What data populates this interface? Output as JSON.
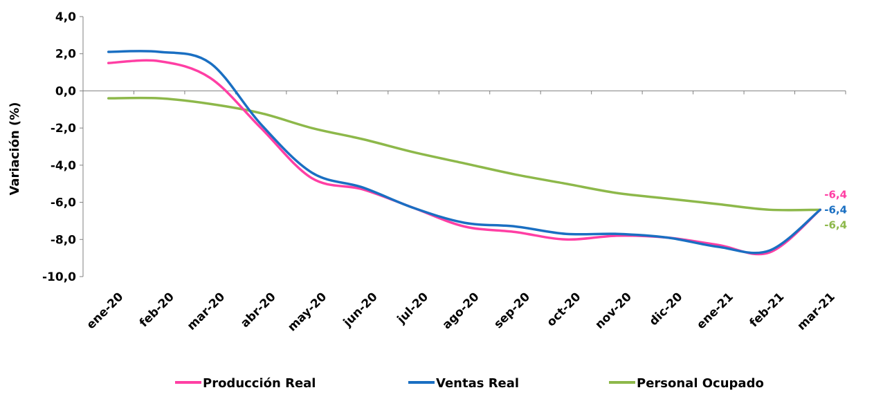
{
  "chart_data": {
    "type": "line",
    "title": "",
    "ylabel": "Variación (%)",
    "xlabel": "",
    "ylim": [
      -10,
      4
    ],
    "yticks": [
      4,
      2,
      0,
      -2,
      -4,
      -6,
      -8,
      -10
    ],
    "ytick_labels": [
      "4,0",
      "2,0",
      "0,0",
      "-2,0",
      "-4,0",
      "-6,0",
      "-8,0",
      "-10,0"
    ],
    "grid": false,
    "legend_position": "bottom",
    "categories": [
      "ene-20",
      "feb-20",
      "mar-20",
      "abr-20",
      "may-20",
      "jun-20",
      "jul-20",
      "ago-20",
      "sep-20",
      "oct-20",
      "nov-20",
      "dic-20",
      "ene-21",
      "feb-21",
      "mar-21"
    ],
    "series": [
      {
        "name": "Producción Real",
        "color": "#ff3fa4",
        "values": [
          1.5,
          1.6,
          0.7,
          -2.0,
          -4.7,
          -5.3,
          -6.3,
          -7.3,
          -7.6,
          -8.0,
          -7.8,
          -7.9,
          -8.3,
          -8.7,
          -6.4
        ],
        "end_label": "-6,4"
      },
      {
        "name": "Ventas Real",
        "color": "#1a6fc2",
        "values": [
          2.1,
          2.1,
          1.5,
          -1.8,
          -4.4,
          -5.2,
          -6.3,
          -7.1,
          -7.3,
          -7.7,
          -7.7,
          -7.9,
          -8.4,
          -8.6,
          -6.4
        ],
        "end_label": "-6,4"
      },
      {
        "name": "Personal Ocupado",
        "color": "#8db84a",
        "values": [
          -0.4,
          -0.4,
          -0.7,
          -1.2,
          -2.0,
          -2.6,
          -3.3,
          -3.9,
          -4.5,
          -5.0,
          -5.5,
          -5.8,
          -6.1,
          -6.4,
          -6.4
        ],
        "end_label": "-6,4"
      }
    ]
  }
}
